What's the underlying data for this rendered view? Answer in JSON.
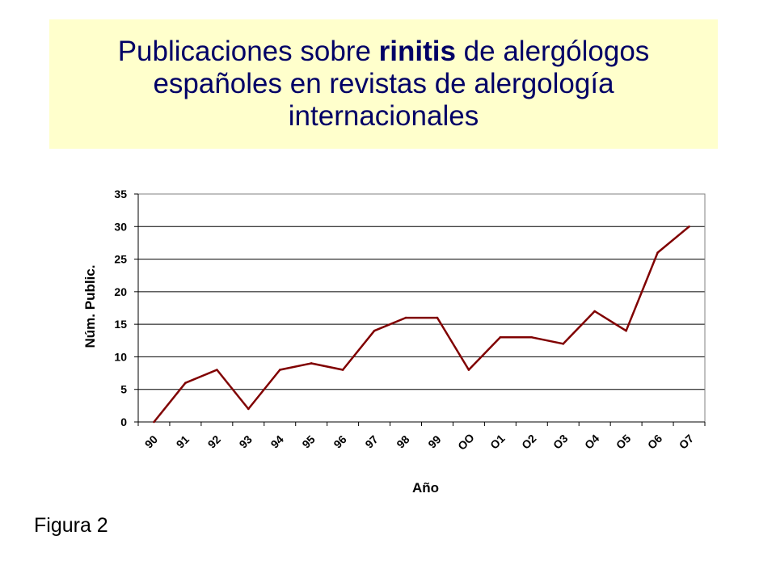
{
  "header": {
    "title_part1": "Publicaciones sobre ",
    "title_bold": "rinitis",
    "title_part2": " de alergólogos",
    "title_line2": "españoles en revistas de alergología",
    "title_line3": "internacionales",
    "background_color": "#ffffcc",
    "text_color": "#000066"
  },
  "chart_data": {
    "type": "line",
    "categories": [
      "90",
      "91",
      "92",
      "93",
      "94",
      "95",
      "96",
      "97",
      "98",
      "99",
      "OO",
      "O1",
      "O2",
      "O3",
      "O4",
      "O5",
      "O6",
      "O7"
    ],
    "series": [
      {
        "values": [
          0,
          6,
          8,
          2,
          8,
          9,
          8,
          14,
          16,
          16,
          8,
          13,
          13,
          12,
          17,
          14,
          26,
          30
        ],
        "color": "#800000"
      }
    ],
    "xlabel": "Año",
    "ylabel": "Núm. Public.",
    "ylim": [
      0,
      35
    ],
    "yticks": [
      0,
      5,
      10,
      15,
      20,
      25,
      30,
      35
    ],
    "grid": true
  },
  "footer": {
    "caption": "Figura 2"
  }
}
